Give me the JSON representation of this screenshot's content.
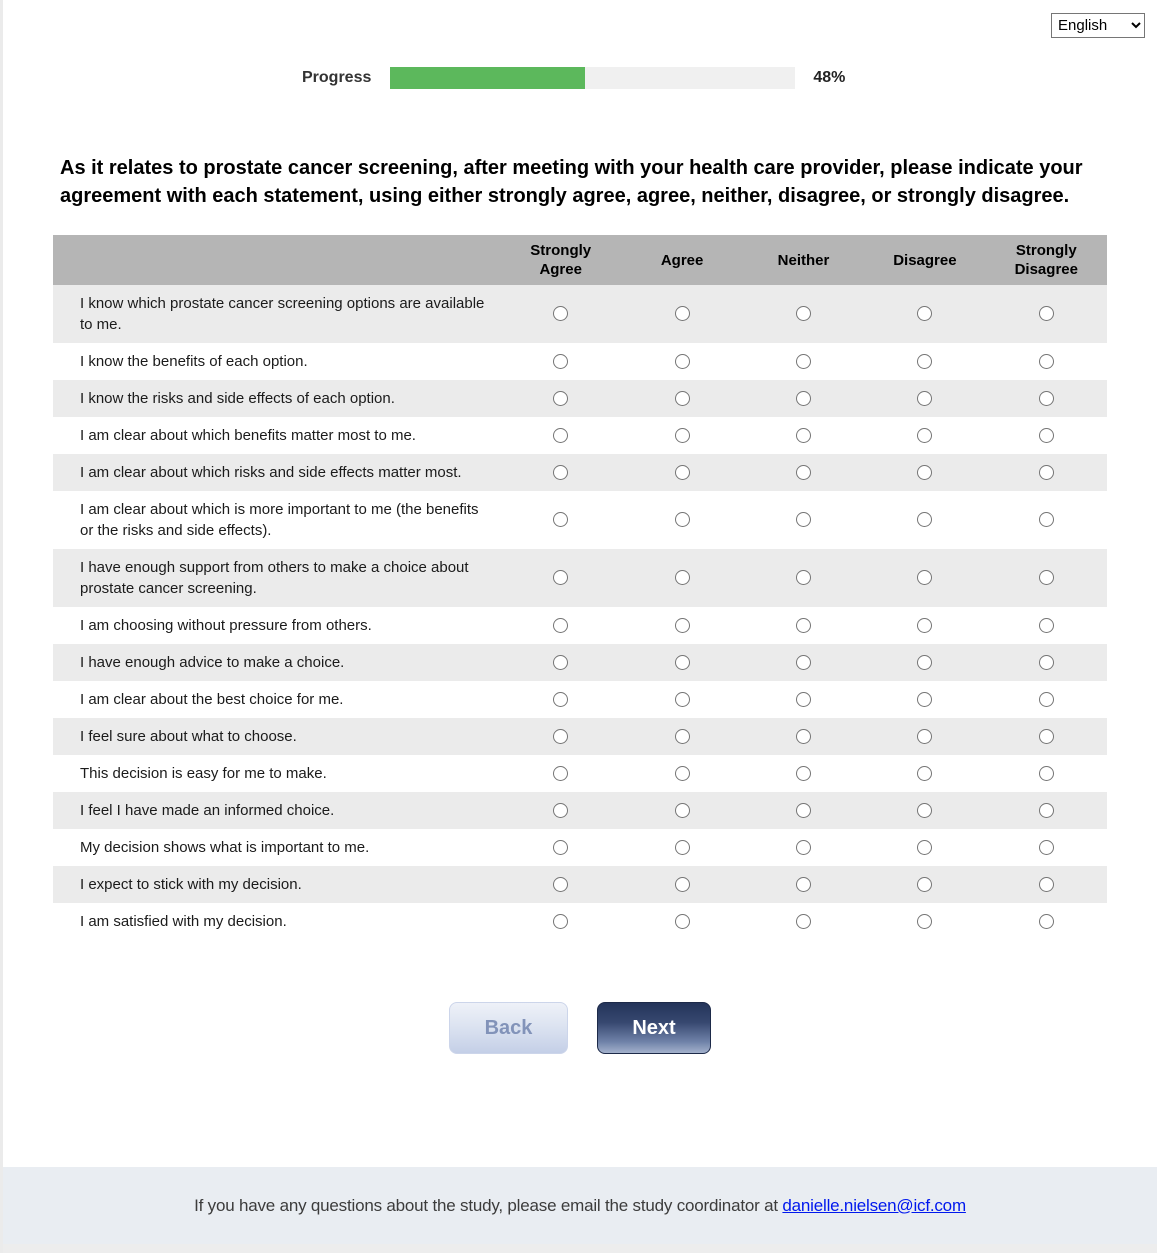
{
  "language_selector": {
    "selected": "English"
  },
  "progress": {
    "label": "Progress",
    "percent": 48,
    "percent_label": "48%"
  },
  "question": "As it relates to prostate cancer screening, after meeting with your health care provider, please indicate your agreement with each statement, using either strongly agree, agree, neither, disagree, or strongly disagree.",
  "table": {
    "columns": [
      "Strongly Agree",
      "Agree",
      "Neither",
      "Disagree",
      "Strongly Disagree"
    ],
    "rows": [
      "I know which prostate cancer screening options are available to me.",
      "I know the benefits of each option.",
      "I know the risks and side effects of each option.",
      "I am clear about which benefits matter most to me.",
      "I am clear about which risks and side effects matter most.",
      "I am clear about which is more important to me (the benefits or the risks and side effects).",
      "I have enough support from others to make a choice about prostate cancer screening.",
      "I am choosing without pressure from others.",
      "I have enough advice to make a choice.",
      "I am clear about the best choice for me.",
      "I feel sure about what to choose.",
      "This decision is easy for me to make.",
      "I feel I have made an informed choice.",
      "My decision shows what is important to me.",
      "I expect to stick with my decision.",
      "I am satisfied with my decision."
    ],
    "radio_state": "all-unselected"
  },
  "buttons": {
    "back": "Back",
    "next": "Next"
  },
  "footer": {
    "text": "If you have any questions about the study, please email the study coordinator at",
    "email": "danielle.nielsen@icf.com"
  },
  "colors": {
    "progress_fill": "#5cb85c",
    "progress_track": "#f0f0f0",
    "header_row_bg": "#b5b5b5",
    "alt_row_bg": "#ebebeb",
    "footer_bg": "#e9edf2",
    "link": "#0018ee",
    "next_button_top": "#24345a",
    "back_button_text": "#8293b9"
  }
}
